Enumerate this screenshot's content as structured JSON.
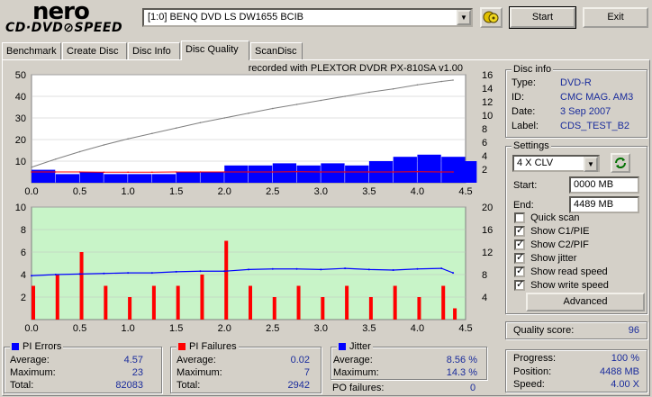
{
  "app": {
    "logo_top": "nero",
    "logo_bottom": "CD·DVD⊘SPEED"
  },
  "toolbar": {
    "drive": "[1:0]  BENQ DVD LS DW1655 BCIB",
    "start_label": "Start",
    "exit_label": "Exit"
  },
  "tabs": [
    {
      "label": "Benchmark"
    },
    {
      "label": "Create Disc"
    },
    {
      "label": "Disc Info"
    },
    {
      "label": "Disc Quality"
    },
    {
      "label": "ScanDisc"
    }
  ],
  "chart_caption": "recorded with PLEXTOR DVDR    PX-810SA   v1.00",
  "chart_data": [
    {
      "type": "area",
      "name": "PI errors / read speed",
      "x": [
        0,
        0.25,
        0.5,
        0.75,
        1.0,
        1.25,
        1.5,
        1.75,
        2.0,
        2.25,
        2.5,
        2.75,
        3.0,
        3.25,
        3.5,
        3.75,
        4.0,
        4.25,
        4.37
      ],
      "series": [
        {
          "color": "#0000ff",
          "values": [
            6,
            4,
            5,
            4,
            4,
            4,
            5,
            5,
            8,
            8,
            9,
            8,
            9,
            8,
            10,
            12,
            13,
            12,
            10
          ]
        },
        {
          "color": "#ff0000",
          "values": [
            5.0,
            5.0,
            5.0,
            4.9,
            4.9,
            4.9,
            5.0,
            5.0,
            5.0,
            5.0,
            5.0,
            5.1,
            5.0,
            5.0,
            5.0,
            5.0,
            5.1,
            5.0,
            5.0
          ]
        },
        {
          "color": "#808080",
          "values": [
            2.3,
            3.5,
            4.6,
            5.6,
            6.5,
            7.3,
            8.1,
            8.9,
            9.6,
            10.3,
            11.0,
            11.6,
            12.2,
            12.8,
            13.4,
            13.9,
            14.5,
            15.0,
            15.2
          ]
        }
      ],
      "x_ticks": [
        "0.0",
        "0.5",
        "1.0",
        "1.5",
        "2.0",
        "2.5",
        "3.0",
        "3.5",
        "4.0",
        "4.5"
      ],
      "y_ticks_left": [
        "10",
        "20",
        "30",
        "40",
        "50"
      ],
      "y_ticks_right": [
        "2",
        "4",
        "6",
        "8",
        "10",
        "12",
        "14",
        "16"
      ],
      "xlim": [
        0,
        4.5
      ],
      "ylim": [
        0,
        50
      ],
      "y2lim": [
        0,
        16
      ]
    },
    {
      "type": "bar",
      "name": "PI failures / jitter",
      "x": [
        0,
        0.25,
        0.5,
        0.75,
        1.0,
        1.25,
        1.5,
        1.75,
        2.0,
        2.25,
        2.5,
        2.75,
        3.0,
        3.25,
        3.5,
        3.75,
        4.0,
        4.25,
        4.37
      ],
      "series": [
        {
          "color": "#ff0000",
          "values": [
            3,
            4,
            6,
            3,
            2,
            3,
            3,
            4,
            7,
            3,
            2,
            3,
            2,
            3,
            2,
            3,
            2,
            3,
            1
          ]
        },
        {
          "color": "#0000ff",
          "values": [
            7.8,
            8.0,
            8.1,
            8.2,
            8.3,
            8.3,
            8.5,
            8.6,
            8.6,
            8.9,
            9.0,
            9.0,
            8.9,
            9.1,
            8.9,
            8.8,
            9.0,
            9.1,
            8.3
          ]
        }
      ],
      "x_ticks": [
        "0.0",
        "0.5",
        "1.0",
        "1.5",
        "2.0",
        "2.5",
        "3.0",
        "3.5",
        "4.0",
        "4.5"
      ],
      "y_ticks_left": [
        "2",
        "4",
        "6",
        "8",
        "10"
      ],
      "y_ticks_right": [
        "4",
        "8",
        "12",
        "16",
        "20"
      ],
      "xlim": [
        0,
        4.5
      ],
      "ylim": [
        0,
        10
      ],
      "y2lim": [
        0,
        20
      ]
    }
  ],
  "disc_info": {
    "title": "Disc info",
    "type_label": "Type:",
    "type": "DVD-R",
    "id_label": "ID:",
    "id": "CMC MAG. AM3",
    "date_label": "Date:",
    "date": "3 Sep 2007",
    "label_label": "Label:",
    "label": "CDS_TEST_B2"
  },
  "settings": {
    "title": "Settings",
    "speed": "4 X CLV",
    "start_label": "Start:",
    "start": "0000 MB",
    "end_label": "End:",
    "end": "4489 MB",
    "checks": [
      {
        "label": "Quick scan",
        "checked": false
      },
      {
        "label": "Show C1/PIE",
        "checked": true
      },
      {
        "label": "Show C2/PIF",
        "checked": true
      },
      {
        "label": "Show jitter",
        "checked": true
      },
      {
        "label": "Show read speed",
        "checked": true
      },
      {
        "label": "Show write speed",
        "checked": true
      }
    ],
    "advanced_label": "Advanced"
  },
  "quality": {
    "label": "Quality score:",
    "value": "96"
  },
  "progress": {
    "progress_label": "Progress:",
    "progress": "100 %",
    "position_label": "Position:",
    "position": "4488 MB",
    "speed_label": "Speed:",
    "speed": "4.00 X"
  },
  "pi_errors": {
    "title": "PI Errors",
    "color": "#0000ff",
    "average_label": "Average:",
    "average": "4.57",
    "maximum_label": "Maximum:",
    "maximum": "23",
    "total_label": "Total:",
    "total": "82083"
  },
  "pi_failures": {
    "title": "PI Failures",
    "color": "#ff0000",
    "average_label": "Average:",
    "average": "0.02",
    "maximum_label": "Maximum:",
    "maximum": "7",
    "total_label": "Total:",
    "total": "2942"
  },
  "jitter": {
    "title": "Jitter",
    "color": "#0000ff",
    "average_label": "Average:",
    "average": "8.56 %",
    "maximum_label": "Maximum:",
    "maximum": "14.3 %",
    "po_label": "PO failures:",
    "po": "0"
  }
}
